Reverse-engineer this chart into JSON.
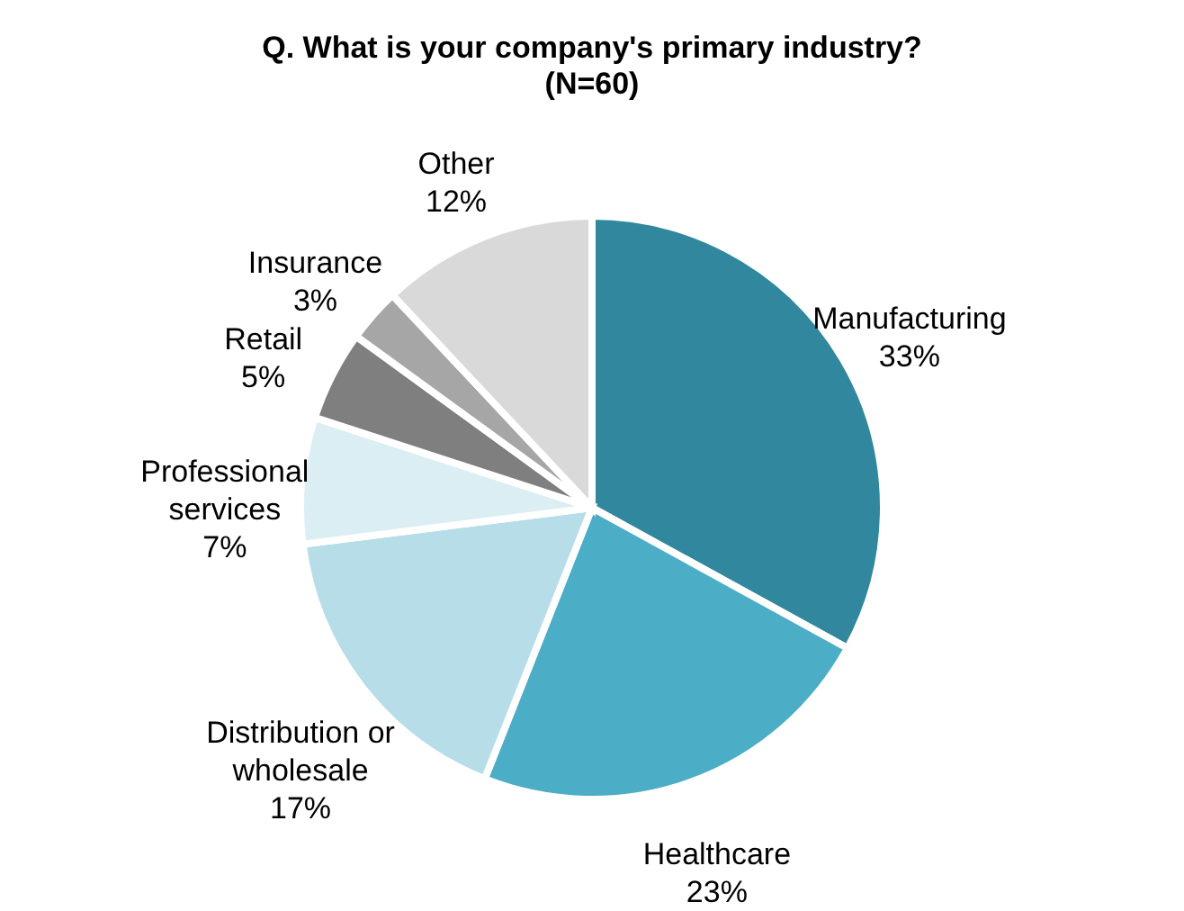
{
  "chart_data": {
    "type": "pie",
    "title": "Q. What is your company's primary industry?",
    "subtitle": "(N=60)",
    "categories": [
      "Manufacturing",
      "Healthcare",
      "Distribution or wholesale",
      "Professional services",
      "Retail",
      "Insurance",
      "Other"
    ],
    "values": [
      33,
      23,
      17,
      7,
      5,
      3,
      12
    ],
    "colors": [
      "#31879e",
      "#4badc6",
      "#b7dde8",
      "#dbeef4",
      "#7f7f7f",
      "#a6a6a6",
      "#d9d9d9"
    ],
    "value_labels": [
      "33%",
      "23%",
      "17%",
      "7%",
      "5%",
      "3%",
      "12%"
    ],
    "legend": false
  }
}
